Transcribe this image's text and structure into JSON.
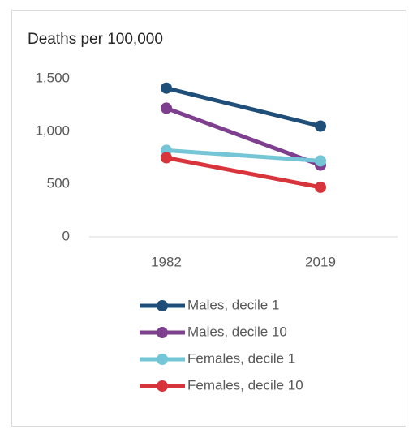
{
  "chart_data": {
    "type": "line",
    "title": "Deaths per 100,000",
    "categories": [
      "1982",
      "2019"
    ],
    "series": [
      {
        "name": "Males, decile 1",
        "color": "#1f4e79",
        "values": [
          1410,
          1050
        ]
      },
      {
        "name": "Males, decile 10",
        "color": "#7e3f8f",
        "values": [
          1220,
          680
        ]
      },
      {
        "name": "Females, decile 1",
        "color": "#74c6d6",
        "values": [
          820,
          720
        ]
      },
      {
        "name": "Females, decile 10",
        "color": "#d8343c",
        "values": [
          750,
          470
        ]
      }
    ],
    "ylim": [
      0,
      1500
    ],
    "yticks": [
      0,
      500,
      {
        "value": 1000,
        "label": "1,000"
      },
      {
        "value": 1500,
        "label": "1,500"
      }
    ],
    "grid": false,
    "legend": "bottom"
  }
}
